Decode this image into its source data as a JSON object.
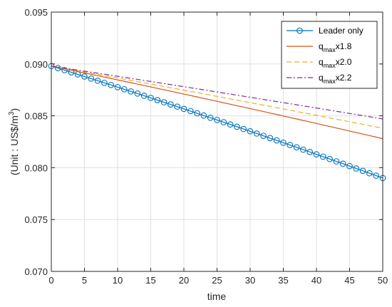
{
  "chart_data": {
    "type": "line",
    "xlabel": "time",
    "ylabel_parts": [
      "(Unit : US$/m",
      "3",
      ")"
    ],
    "xlim": [
      0,
      50
    ],
    "ylim": [
      0.07,
      0.095
    ],
    "xticks": [
      0,
      5,
      10,
      15,
      20,
      25,
      30,
      35,
      40,
      45,
      50
    ],
    "xtick_labels": [
      "0",
      "5",
      "10",
      "15",
      "20",
      "25",
      "30",
      "35",
      "40",
      "45",
      "50"
    ],
    "yticks": [
      0.07,
      0.075,
      0.08,
      0.085,
      0.09,
      0.095
    ],
    "ytick_labels": [
      "0.070",
      "0.075",
      "0.080",
      "0.085",
      "0.090",
      "0.095"
    ],
    "grid": true,
    "legend_position": "top-right",
    "series": [
      {
        "name": "Leader only",
        "legend_main": "Leader only",
        "legend_sub": "",
        "legend_tail": "",
        "color": "#0072BD",
        "style": "solid-circle",
        "x": [
          0,
          50
        ],
        "y": [
          0.0898,
          0.079
        ],
        "curvature": 0.0008
      },
      {
        "name": "qmaxx1.8",
        "legend_main": "q",
        "legend_sub": "max",
        "legend_tail": "x1.8",
        "color": "#D95319",
        "style": "solid",
        "x": [
          0,
          50
        ],
        "y": [
          0.0898,
          0.0828
        ],
        "curvature": 0.0004
      },
      {
        "name": "qmaxx2.0",
        "legend_main": "q",
        "legend_sub": "max",
        "legend_tail": "x2.0",
        "color": "#EDB120",
        "style": "dashed",
        "x": [
          0,
          50
        ],
        "y": [
          0.0898,
          0.0838
        ],
        "curvature": 0.0003
      },
      {
        "name": "qmaxx2.2",
        "legend_main": "q",
        "legend_sub": "max",
        "legend_tail": "x2.2",
        "color": "#7E2F8E",
        "style": "dashdot",
        "x": [
          0,
          50
        ],
        "y": [
          0.0898,
          0.0847
        ],
        "curvature": 0.0002
      }
    ]
  }
}
